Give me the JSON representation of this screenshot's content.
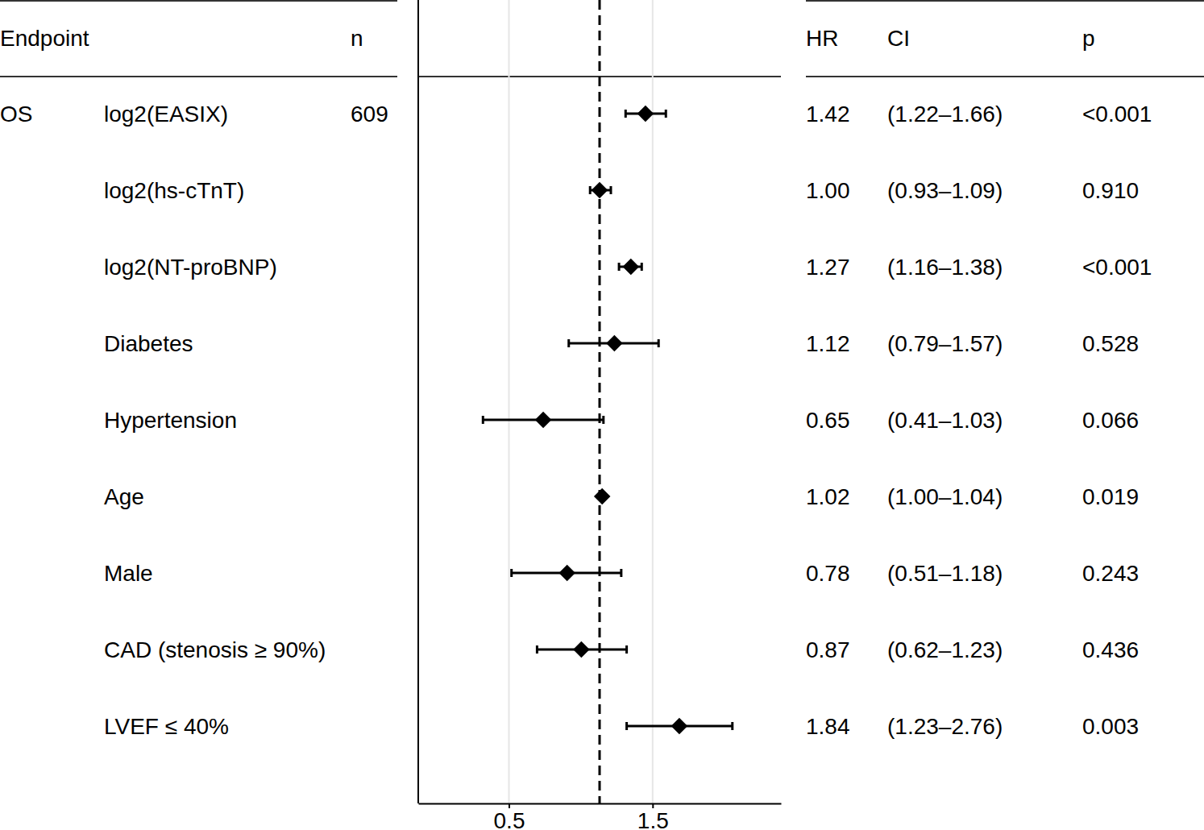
{
  "chart_data": {
    "type": "forest",
    "columns": [
      "Endpoint",
      "n",
      "HR",
      "CI",
      "p"
    ],
    "endpoint": "OS",
    "n": 609,
    "categories": [
      "log2(EASIX)",
      "log2(hs-cTnT)",
      "log2(NT-proBNP)",
      "Diabetes",
      "Hypertension",
      "Age",
      "Male",
      "CAD (stenosis ≥ 90%)",
      "LVEF ≤ 40%"
    ],
    "values": [
      1.42,
      1.0,
      1.27,
      1.12,
      0.65,
      1.02,
      0.78,
      0.87,
      1.84
    ],
    "value_labels": [
      "1.42",
      "1.00",
      "1.27",
      "1.12",
      "0.65",
      "1.02",
      "0.78",
      "0.87",
      "1.84"
    ],
    "ci_lower": [
      1.22,
      0.93,
      1.16,
      0.79,
      0.41,
      1.0,
      0.51,
      0.62,
      1.23
    ],
    "ci_upper": [
      1.66,
      1.09,
      1.38,
      1.57,
      1.03,
      1.04,
      1.18,
      1.23,
      2.76
    ],
    "ci_labels": [
      "(1.22–1.66)",
      "(0.93–1.09)",
      "(1.16–1.38)",
      "(0.79–1.57)",
      "(0.41–1.03)",
      "(1.00–1.04)",
      "(0.51–1.18)",
      "(0.62–1.23)",
      "(1.23–2.76)"
    ],
    "p_labels": [
      "<0.001",
      "0.910",
      "<0.001",
      "0.528",
      "0.066",
      "0.019",
      "0.243",
      "0.436",
      "0.003"
    ],
    "reference": 1,
    "xlim": [
      0.25,
      4
    ],
    "xticks": [
      0.5,
      1.5
    ],
    "log": "x",
    "grid": true,
    "marker": "diamond",
    "color": "#000000"
  }
}
